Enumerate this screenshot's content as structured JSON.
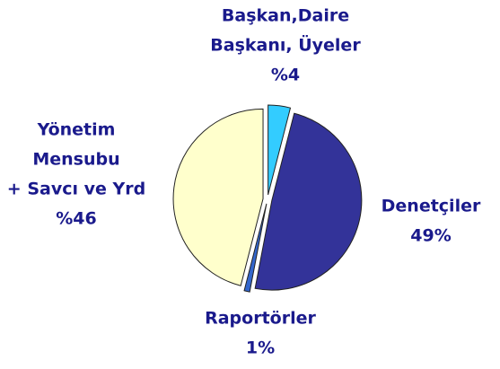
{
  "chart_data": {
    "type": "pie",
    "categories": [
      [
        "Başkan,Daire",
        "Başkanı, Üyeler"
      ],
      [
        "Denetçiler"
      ],
      [
        "Raportörler"
      ],
      [
        "Yönetim",
        "Mensubu",
        "+ Savcı ve Yrd"
      ]
    ],
    "values": [
      4,
      49,
      1,
      46
    ],
    "value_labels": [
      "%4",
      "49%",
      "1%",
      "%46"
    ],
    "colors": [
      "#33ccff",
      "#333399",
      "#3366cc",
      "#ffffcc"
    ]
  }
}
